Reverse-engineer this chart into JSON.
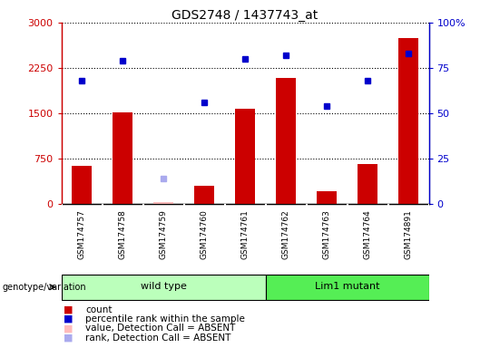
{
  "title": "GDS2748 / 1437743_at",
  "samples": [
    "GSM174757",
    "GSM174758",
    "GSM174759",
    "GSM174760",
    "GSM174761",
    "GSM174762",
    "GSM174763",
    "GSM174764",
    "GSM174891"
  ],
  "counts": [
    620,
    1510,
    25,
    290,
    1570,
    2090,
    210,
    650,
    2750
  ],
  "percentile_ranks": [
    68,
    79,
    null,
    56,
    80,
    82,
    54,
    68,
    83
  ],
  "absent_values": [
    null,
    null,
    220,
    null,
    null,
    null,
    null,
    null,
    null
  ],
  "absent_ranks": [
    null,
    null,
    14,
    null,
    null,
    null,
    null,
    null,
    null
  ],
  "count_absent": [
    false,
    false,
    true,
    false,
    false,
    false,
    false,
    false,
    false
  ],
  "groups": [
    {
      "label": "wild type",
      "indices": [
        0,
        1,
        2,
        3,
        4
      ],
      "color": "#bbffbb"
    },
    {
      "label": "Lim1 mutant",
      "indices": [
        5,
        6,
        7,
        8
      ],
      "color": "#55ee55"
    }
  ],
  "ylim_left": [
    0,
    3000
  ],
  "ylim_right": [
    0,
    100
  ],
  "yticks_left": [
    0,
    750,
    1500,
    2250,
    3000
  ],
  "ytick_labels_left": [
    "0",
    "750",
    "1500",
    "2250",
    "3000"
  ],
  "yticks_right": [
    0,
    25,
    50,
    75,
    100
  ],
  "ytick_labels_right": [
    "0",
    "25",
    "50",
    "75",
    "100%"
  ],
  "bar_color": "#cc0000",
  "dot_color": "#0000cc",
  "absent_bar_color": "#ffbbbb",
  "absent_dot_color": "#aaaaee",
  "grid_color": "#000000",
  "cell_bg": "#d8d8d8",
  "plot_bg": "#ffffff",
  "left_axis_color": "#cc0000",
  "right_axis_color": "#0000cc",
  "dot_size": 5,
  "bar_width": 0.5
}
